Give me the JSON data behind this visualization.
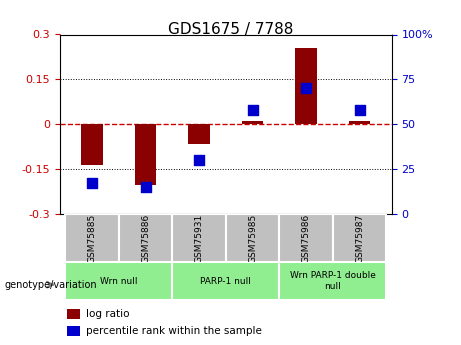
{
  "title": "GDS1675 / 7788",
  "samples": [
    "GSM75885",
    "GSM75886",
    "GSM75931",
    "GSM75985",
    "GSM75986",
    "GSM75987"
  ],
  "log_ratios": [
    -0.135,
    -0.205,
    -0.065,
    0.01,
    0.255,
    0.01
  ],
  "percentile_ranks": [
    17,
    15,
    30,
    58,
    70,
    58
  ],
  "ylim_left": [
    -0.3,
    0.3
  ],
  "ylim_right": [
    0,
    100
  ],
  "yticks_left": [
    -0.3,
    -0.15,
    0,
    0.15,
    0.3
  ],
  "yticks_right": [
    0,
    25,
    50,
    75,
    100
  ],
  "groups": [
    {
      "label": "Wrn null",
      "samples": [
        "GSM75885",
        "GSM75886"
      ],
      "color": "#90EE90"
    },
    {
      "label": "PARP-1 null",
      "samples": [
        "GSM75931",
        "GSM75985"
      ],
      "color": "#90EE90"
    },
    {
      "label": "Wrn PARP-1 double\nnull",
      "samples": [
        "GSM75986",
        "GSM75987"
      ],
      "color": "#90EE90"
    }
  ],
  "bar_color": "#8B0000",
  "dot_color": "#0000CD",
  "bar_width": 0.4,
  "dot_size": 60,
  "grid_color": "#000000",
  "zero_line_color": "#CC0000",
  "bg_color": "#FFFFFF",
  "plot_bg": "#FFFFFF",
  "label_area_color": "#C0C0C0",
  "genotype_label": "genotype/variation",
  "legend_log_ratio": "log ratio",
  "legend_percentile": "percentile rank within the sample",
  "tick_fontsize": 8,
  "title_fontsize": 11
}
